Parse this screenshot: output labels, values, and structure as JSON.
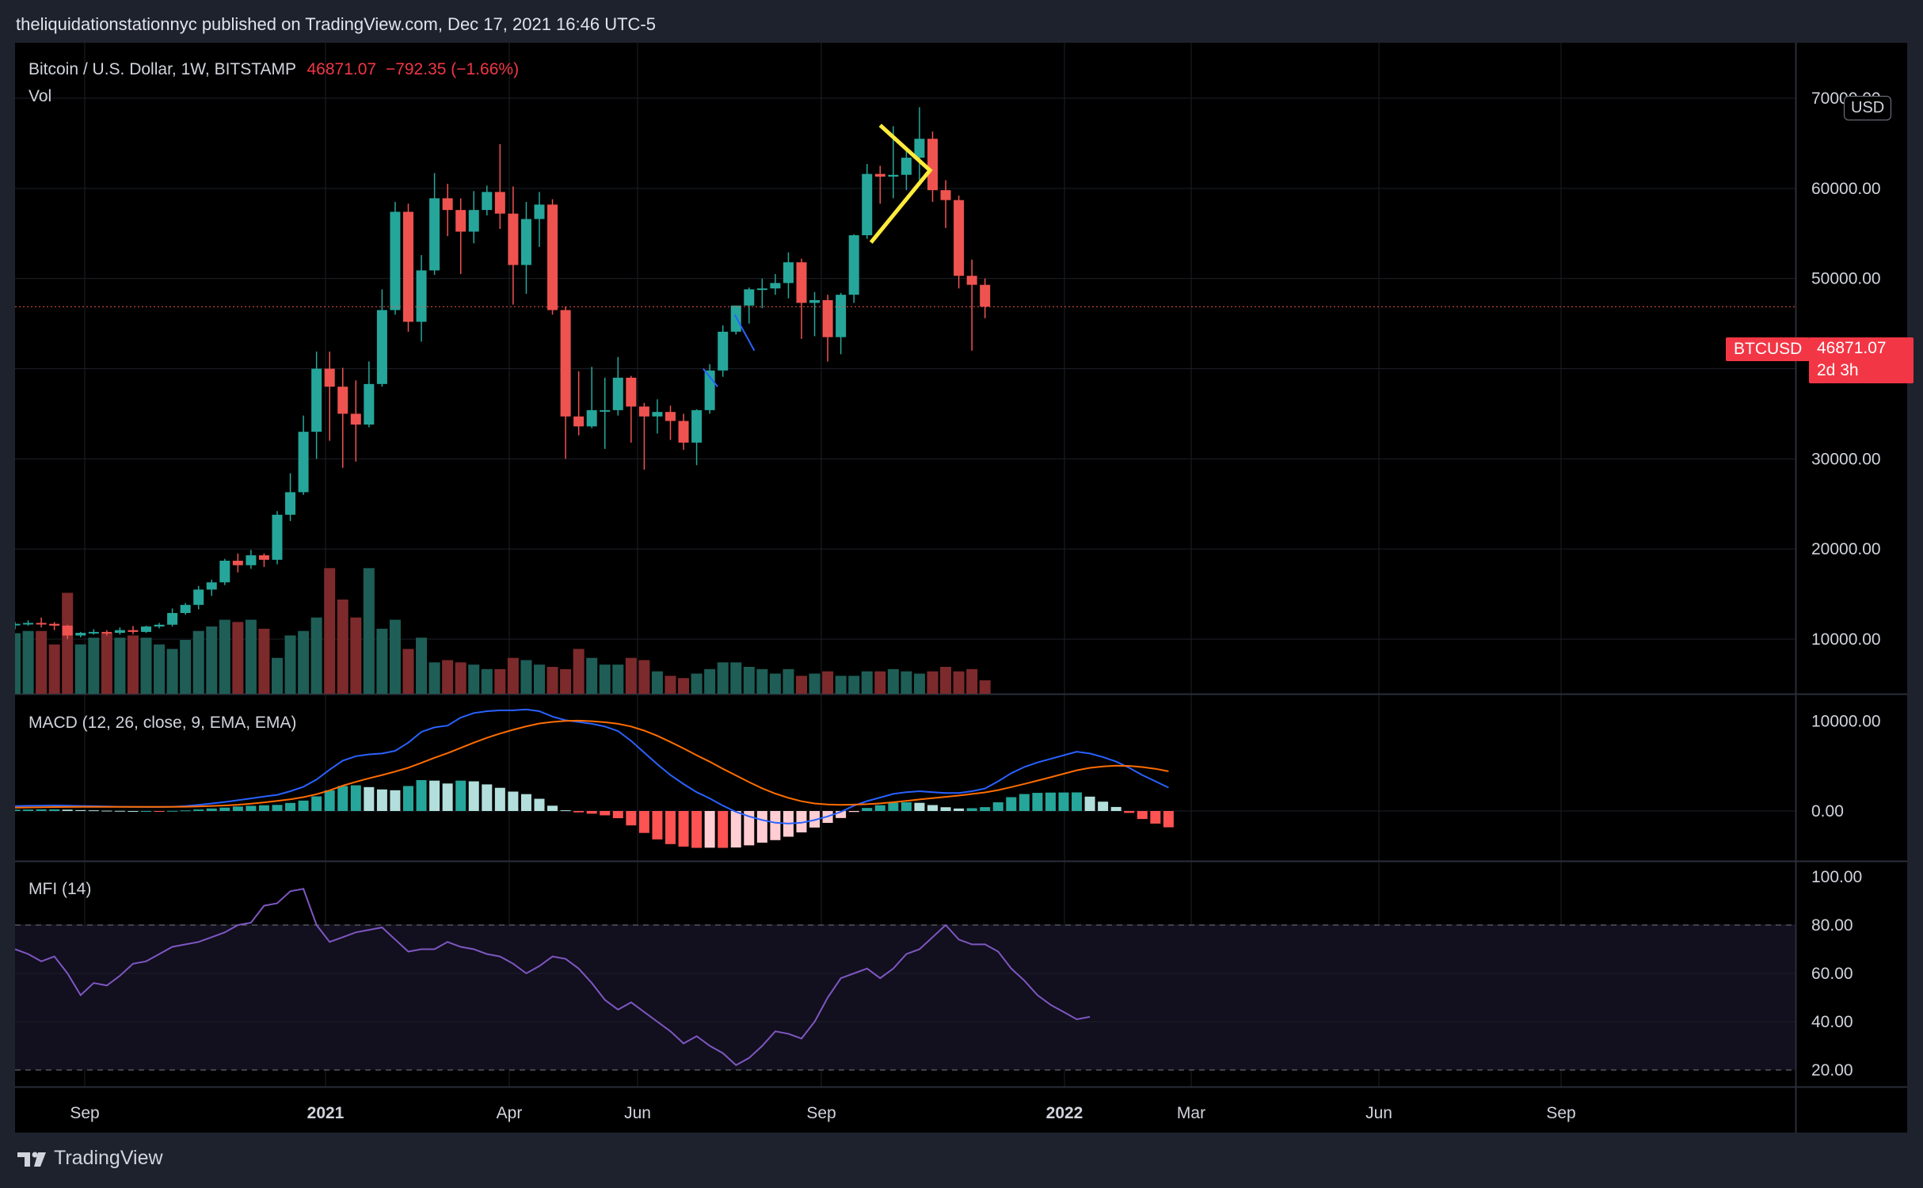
{
  "header": {
    "publisher_line": "theliquidationstationnyc published on TradingView.com, Dec 17, 2021 16:46 UTC-5"
  },
  "legend": {
    "symbol": "Bitcoin / U.S. Dollar, 1W, BITSTAMP",
    "last": "46871.07",
    "change": "−792.35 (−1.66%)",
    "vol_label": "Vol",
    "macd_label": "MACD (12, 26, close, 9, EMA, EMA)",
    "mfi_label": "MFI (14)"
  },
  "price_scale": {
    "currency_button": "USD",
    "symbol_tag": "BTCUSD",
    "price_tag": "46871.07",
    "countdown": "2d 3h"
  },
  "footer": {
    "brand": "TradingView"
  },
  "colors": {
    "up": "#26a69a",
    "down": "#ef5350",
    "vol_up": "#1e5e57",
    "vol_down": "#7d2a2c",
    "macd": "#2962ff",
    "signal": "#ff6d00",
    "mfi": "#7e57c2",
    "annotation": "#ffeb3b"
  },
  "chart_data": [
    {
      "type": "candlestick",
      "title": "Bitcoin / U.S. Dollar, 1W, BITSTAMP",
      "y_range": [
        0,
        75000
      ],
      "y_ticks": [
        "70000.00",
        "60000.00",
        "50000.00",
        "40000.00",
        "30000.00",
        "20000.00",
        "10000.00"
      ],
      "x_ticks": [
        "Sep",
        "2021",
        "Apr",
        "Jun",
        "Sep",
        "2022",
        "Mar",
        "Jun",
        "Sep"
      ],
      "current_price": 46871.07,
      "candles": [
        {
          "o": 11650,
          "h": 11900,
          "l": 11100,
          "c": 11700
        },
        {
          "o": 11700,
          "h": 12100,
          "l": 11500,
          "c": 11800
        },
        {
          "o": 11800,
          "h": 12400,
          "l": 11300,
          "c": 11700
        },
        {
          "o": 11700,
          "h": 11900,
          "l": 11000,
          "c": 11500
        },
        {
          "o": 11500,
          "h": 11600,
          "l": 10000,
          "c": 10400
        },
        {
          "o": 10400,
          "h": 10800,
          "l": 10200,
          "c": 10700
        },
        {
          "o": 10700,
          "h": 11100,
          "l": 10500,
          "c": 10800
        },
        {
          "o": 10800,
          "h": 11000,
          "l": 10400,
          "c": 10700
        },
        {
          "o": 10700,
          "h": 11300,
          "l": 10500,
          "c": 11000
        },
        {
          "o": 11000,
          "h": 11450,
          "l": 10550,
          "c": 10800
        },
        {
          "o": 10800,
          "h": 11500,
          "l": 10700,
          "c": 11400
        },
        {
          "o": 11400,
          "h": 11800,
          "l": 11200,
          "c": 11600
        },
        {
          "o": 11600,
          "h": 13400,
          "l": 11400,
          "c": 12900
        },
        {
          "o": 12900,
          "h": 14000,
          "l": 12700,
          "c": 13800
        },
        {
          "o": 13800,
          "h": 15900,
          "l": 13300,
          "c": 15500
        },
        {
          "o": 15500,
          "h": 16600,
          "l": 14800,
          "c": 16300
        },
        {
          "o": 16300,
          "h": 18900,
          "l": 16000,
          "c": 18700
        },
        {
          "o": 18700,
          "h": 19500,
          "l": 17400,
          "c": 18200
        },
        {
          "o": 18200,
          "h": 19900,
          "l": 17800,
          "c": 19300
        },
        {
          "o": 19300,
          "h": 19500,
          "l": 18000,
          "c": 18800
        },
        {
          "o": 18800,
          "h": 24200,
          "l": 18300,
          "c": 23800
        },
        {
          "o": 23800,
          "h": 28400,
          "l": 23100,
          "c": 26300
        },
        {
          "o": 26300,
          "h": 34800,
          "l": 26000,
          "c": 33000
        },
        {
          "o": 33000,
          "h": 41900,
          "l": 30000,
          "c": 40000
        },
        {
          "o": 40000,
          "h": 41900,
          "l": 32000,
          "c": 38000
        },
        {
          "o": 38000,
          "h": 40100,
          "l": 29000,
          "c": 35000
        },
        {
          "o": 35000,
          "h": 38700,
          "l": 29700,
          "c": 33800
        },
        {
          "o": 33800,
          "h": 40800,
          "l": 33500,
          "c": 38300
        },
        {
          "o": 38300,
          "h": 48800,
          "l": 38000,
          "c": 46500
        },
        {
          "o": 46500,
          "h": 58500,
          "l": 46000,
          "c": 57400
        },
        {
          "o": 57400,
          "h": 58300,
          "l": 44100,
          "c": 45200
        },
        {
          "o": 45200,
          "h": 52600,
          "l": 43000,
          "c": 50900
        },
        {
          "o": 50900,
          "h": 61700,
          "l": 50400,
          "c": 58900
        },
        {
          "o": 58900,
          "h": 60500,
          "l": 54700,
          "c": 57600
        },
        {
          "o": 57600,
          "h": 58900,
          "l": 50500,
          "c": 55200
        },
        {
          "o": 55200,
          "h": 59700,
          "l": 53900,
          "c": 57600
        },
        {
          "o": 57600,
          "h": 60300,
          "l": 57000,
          "c": 59600
        },
        {
          "o": 59600,
          "h": 64900,
          "l": 55500,
          "c": 57200
        },
        {
          "o": 57200,
          "h": 60200,
          "l": 47100,
          "c": 51500
        },
        {
          "o": 51500,
          "h": 58500,
          "l": 48300,
          "c": 56600
        },
        {
          "o": 56600,
          "h": 59600,
          "l": 53500,
          "c": 58200
        },
        {
          "o": 58200,
          "h": 58800,
          "l": 46000,
          "c": 46500
        },
        {
          "o": 46500,
          "h": 46900,
          "l": 30000,
          "c": 34700
        },
        {
          "o": 34700,
          "h": 39700,
          "l": 32600,
          "c": 33600
        },
        {
          "o": 33600,
          "h": 40200,
          "l": 33400,
          "c": 35400
        },
        {
          "o": 35400,
          "h": 39000,
          "l": 31100,
          "c": 35400
        },
        {
          "o": 35400,
          "h": 41300,
          "l": 34800,
          "c": 39000
        },
        {
          "o": 39000,
          "h": 39200,
          "l": 31800,
          "c": 35800
        },
        {
          "o": 35800,
          "h": 36200,
          "l": 28800,
          "c": 34700
        },
        {
          "o": 34700,
          "h": 36600,
          "l": 32800,
          "c": 35200
        },
        {
          "o": 35200,
          "h": 35900,
          "l": 32100,
          "c": 34200
        },
        {
          "o": 34200,
          "h": 35000,
          "l": 31000,
          "c": 31800
        },
        {
          "o": 31800,
          "h": 35500,
          "l": 29300,
          "c": 35400
        },
        {
          "o": 35400,
          "h": 40500,
          "l": 35000,
          "c": 39800
        },
        {
          "o": 39800,
          "h": 44800,
          "l": 39100,
          "c": 44100
        },
        {
          "o": 44100,
          "h": 47000,
          "l": 43800,
          "c": 47000
        },
        {
          "o": 47000,
          "h": 49000,
          "l": 45000,
          "c": 48800
        },
        {
          "o": 48800,
          "h": 50000,
          "l": 46700,
          "c": 48900
        },
        {
          "o": 48900,
          "h": 50500,
          "l": 48200,
          "c": 49500
        },
        {
          "o": 49500,
          "h": 52900,
          "l": 47800,
          "c": 51800
        },
        {
          "o": 51800,
          "h": 52200,
          "l": 43300,
          "c": 47300
        },
        {
          "o": 47300,
          "h": 48500,
          "l": 43600,
          "c": 47600
        },
        {
          "o": 47600,
          "h": 48200,
          "l": 40800,
          "c": 43500
        },
        {
          "o": 43500,
          "h": 48400,
          "l": 41600,
          "c": 48200
        },
        {
          "o": 48200,
          "h": 54900,
          "l": 47300,
          "c": 54800
        },
        {
          "o": 54800,
          "h": 62700,
          "l": 54400,
          "c": 61600
        },
        {
          "o": 61600,
          "h": 62500,
          "l": 58300,
          "c": 61300
        },
        {
          "o": 61300,
          "h": 66900,
          "l": 58900,
          "c": 61500
        },
        {
          "o": 61500,
          "h": 64200,
          "l": 59800,
          "c": 63400
        },
        {
          "o": 63400,
          "h": 69000,
          "l": 60500,
          "c": 65500
        },
        {
          "o": 65500,
          "h": 66300,
          "l": 58500,
          "c": 59800
        },
        {
          "o": 59800,
          "h": 60900,
          "l": 55600,
          "c": 58700
        },
        {
          "o": 58700,
          "h": 59200,
          "l": 48900,
          "c": 50300
        },
        {
          "o": 50300,
          "h": 52100,
          "l": 42000,
          "c": 49300
        },
        {
          "o": 49300,
          "h": 50000,
          "l": 45600,
          "c": 46871
        }
      ]
    },
    {
      "type": "bar",
      "title": "Vol",
      "values": [
        27,
        28,
        28,
        22,
        45,
        22,
        25,
        27,
        25,
        26,
        25,
        22,
        20,
        24,
        28,
        30,
        33,
        32,
        33,
        29,
        16,
        26,
        28,
        34,
        56,
        42,
        34,
        56,
        29,
        33,
        20,
        25,
        14,
        15,
        14,
        13,
        11,
        11,
        16,
        15,
        13,
        12,
        11,
        20,
        16,
        13,
        13,
        16,
        15,
        10,
        8,
        7,
        9,
        11,
        14,
        14,
        12,
        11,
        9,
        11,
        8,
        9,
        10,
        8,
        8,
        10,
        10,
        11,
        10,
        9,
        10,
        12,
        10,
        11,
        6
      ]
    },
    {
      "type": "line",
      "title": "MACD (12, 26, close, 9, EMA, EMA)",
      "y_range": [
        -5500,
        12000
      ],
      "y_ticks": [
        "10000.00",
        "0.00"
      ],
      "series": [
        {
          "name": "MACD",
          "values": [
            550,
            580,
            600,
            620,
            600,
            560,
            540,
            500,
            480,
            460,
            450,
            450,
            480,
            550,
            680,
            840,
            1000,
            1200,
            1400,
            1600,
            1800,
            2200,
            2700,
            3500,
            4600,
            5600,
            6100,
            6300,
            6400,
            6700,
            7600,
            8800,
            9300,
            9500,
            10400,
            10900,
            11100,
            11200,
            11200,
            11300,
            11100,
            10500,
            10100,
            9900,
            9700,
            9400,
            8900,
            7800,
            6500,
            5200,
            4000,
            3000,
            2100,
            1400,
            600,
            -100,
            -600,
            -1000,
            -1300,
            -1400,
            -1300,
            -1000,
            -600,
            -100,
            600,
            1100,
            1500,
            1900,
            2100,
            2200,
            2100,
            2000,
            2000,
            2200,
            2500,
            3300,
            4200,
            4900,
            5400,
            5800,
            6200,
            6600,
            6400,
            6000,
            5500,
            4800,
            4000,
            3300,
            2600
          ]
        },
        {
          "name": "Signal",
          "values": [
            380,
            400,
            420,
            440,
            450,
            460,
            460,
            460,
            460,
            460,
            460,
            460,
            460,
            480,
            510,
            560,
            620,
            700,
            820,
            960,
            1120,
            1300,
            1540,
            1870,
            2300,
            2820,
            3240,
            3640,
            4000,
            4390,
            4820,
            5360,
            5920,
            6440,
            7020,
            7600,
            8140,
            8620,
            9040,
            9420,
            9740,
            9910,
            10020,
            10050,
            9990,
            9880,
            9700,
            9400,
            8940,
            8360,
            7680,
            6960,
            6200,
            5480,
            4700,
            3960,
            3220,
            2520,
            1940,
            1460,
            1080,
            840,
            720,
            680,
            710,
            760,
            850,
            980,
            1130,
            1290,
            1440,
            1580,
            1720,
            1890,
            2070,
            2330,
            2660,
            3010,
            3380,
            3750,
            4140,
            4530,
            4800,
            4960,
            5050,
            5010,
            4890,
            4700,
            4410
          ]
        }
      ],
      "histogram": [
        150,
        160,
        180,
        180,
        150,
        100,
        80,
        40,
        20,
        0,
        0,
        -10,
        20,
        70,
        170,
        280,
        380,
        500,
        580,
        640,
        680,
        900,
        1160,
        1630,
        2300,
        2780,
        2860,
        2660,
        2400,
        2310,
        2780,
        3440,
        3380,
        3060,
        3380,
        3300,
        2960,
        2580,
        2160,
        1880,
        1360,
        590,
        80,
        -150,
        -300,
        -480,
        -800,
        -1600,
        -2440,
        -3160,
        -3680,
        -3960,
        -4100,
        -4080,
        -4100,
        -4060,
        -3820,
        -3520,
        -3240,
        -2860,
        -2380,
        -1840,
        -1320,
        -780,
        -110,
        340,
        650,
        920,
        970,
        910,
        660,
        420,
        280,
        310,
        430,
        970,
        1540,
        1890,
        2020,
        2050,
        2060,
        2070,
        1600,
        1040,
        450,
        -210,
        -890,
        -1400,
        -1810
      ]
    },
    {
      "type": "line",
      "title": "MFI (14)",
      "y_range": [
        10,
        100
      ],
      "y_ticks": [
        "100.00",
        "80.00",
        "60.00",
        "40.00",
        "20.00"
      ],
      "bands": [
        20,
        80
      ],
      "series": [
        {
          "name": "MFI",
          "values": [
            70,
            68,
            65,
            67,
            60,
            51,
            56,
            55,
            59,
            64,
            65,
            68,
            71,
            72,
            73,
            75,
            77,
            80,
            81,
            88,
            89,
            94,
            95,
            80,
            73,
            75,
            77,
            78,
            79,
            74,
            69,
            70,
            70,
            73,
            71,
            70,
            68,
            67,
            64,
            60,
            63,
            67,
            66,
            62,
            56,
            49,
            45,
            48,
            44,
            40,
            36,
            31,
            34,
            30,
            27,
            22,
            25,
            30,
            36,
            35,
            33,
            40,
            50,
            58,
            60,
            62,
            58,
            62,
            68,
            70,
            75,
            80,
            74,
            72,
            72,
            69,
            62,
            57,
            51,
            47,
            44,
            41,
            42
          ]
        }
      ]
    }
  ]
}
